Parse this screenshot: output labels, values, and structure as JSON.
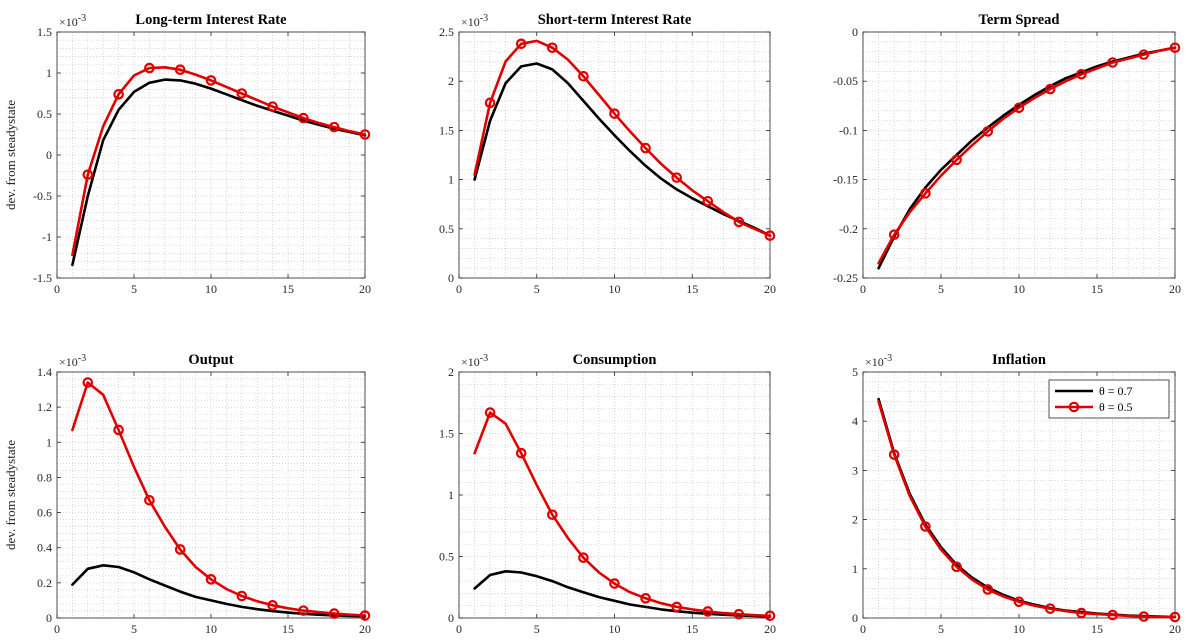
{
  "figure": {
    "colors": {
      "black_series": "#000000",
      "red_series": "#e00000",
      "grid": "#c8c8c8",
      "axis": "#262626"
    }
  },
  "chart_data": [
    {
      "type": "line",
      "title": "Long-term Interest Rate",
      "ylabel": "dev. from steadystate",
      "exponent_label": "×10",
      "exponent_power": "-3",
      "xlim": [
        0,
        20
      ],
      "ylim": [
        -1.5,
        1.5
      ],
      "xticks": [
        0,
        5,
        10,
        15,
        20
      ],
      "yticks": [
        -1.5,
        -1,
        -0.5,
        0,
        0.5,
        1,
        1.5
      ],
      "ytick_labels": [
        "-1.5",
        "-1",
        "-0.5",
        "0",
        "0.5",
        "1",
        "1.5"
      ],
      "grid": true,
      "x": [
        1,
        2,
        3,
        4,
        5,
        6,
        7,
        8,
        9,
        10,
        11,
        12,
        13,
        14,
        15,
        16,
        17,
        18,
        19,
        20
      ],
      "series": [
        {
          "color": "#000000",
          "marker": "none",
          "values": [
            -1.34,
            -0.5,
            0.18,
            0.55,
            0.77,
            0.88,
            0.92,
            0.91,
            0.87,
            0.81,
            0.74,
            0.67,
            0.6,
            0.54,
            0.48,
            0.42,
            0.37,
            0.32,
            0.28,
            0.24
          ]
        },
        {
          "color": "#e00000",
          "marker": "circle",
          "values": [
            -1.22,
            -0.24,
            0.35,
            0.74,
            0.97,
            1.06,
            1.07,
            1.04,
            0.98,
            0.91,
            0.83,
            0.75,
            0.67,
            0.59,
            0.52,
            0.45,
            0.39,
            0.34,
            0.29,
            0.25
          ]
        }
      ]
    },
    {
      "type": "line",
      "title": "Short-term Interest Rate",
      "ylabel": "",
      "exponent_label": "×10",
      "exponent_power": "-3",
      "xlim": [
        0,
        20
      ],
      "ylim": [
        0,
        2.5
      ],
      "xticks": [
        0,
        5,
        10,
        15,
        20
      ],
      "yticks": [
        0,
        0.5,
        1,
        1.5,
        2,
        2.5
      ],
      "ytick_labels": [
        "0",
        "0.5",
        "1",
        "1.5",
        "2",
        "2.5"
      ],
      "grid": true,
      "x": [
        1,
        2,
        3,
        4,
        5,
        6,
        7,
        8,
        9,
        10,
        11,
        12,
        13,
        14,
        15,
        16,
        17,
        18,
        19,
        20
      ],
      "series": [
        {
          "color": "#000000",
          "marker": "none",
          "values": [
            1.0,
            1.6,
            1.98,
            2.15,
            2.18,
            2.12,
            1.98,
            1.8,
            1.62,
            1.45,
            1.29,
            1.14,
            1.01,
            0.9,
            0.81,
            0.73,
            0.65,
            0.58,
            0.51,
            0.43
          ]
        },
        {
          "color": "#e00000",
          "marker": "circle",
          "values": [
            1.05,
            1.78,
            2.2,
            2.38,
            2.41,
            2.34,
            2.22,
            2.05,
            1.86,
            1.67,
            1.49,
            1.32,
            1.16,
            1.02,
            0.89,
            0.78,
            0.67,
            0.57,
            0.5,
            0.43
          ]
        }
      ]
    },
    {
      "type": "line",
      "title": "Term Spread",
      "ylabel": "",
      "exponent_label": "",
      "exponent_power": "",
      "xlim": [
        0,
        20
      ],
      "ylim": [
        -0.25,
        0
      ],
      "xticks": [
        0,
        5,
        10,
        15,
        20
      ],
      "yticks": [
        -0.25,
        -0.2,
        -0.15,
        -0.1,
        -0.05,
        0
      ],
      "ytick_labels": [
        "-0.25",
        "-0.2",
        "-0.15",
        "-0.1",
        "-0.05",
        "0"
      ],
      "grid": true,
      "x": [
        1,
        2,
        3,
        4,
        5,
        6,
        7,
        8,
        9,
        10,
        11,
        12,
        13,
        14,
        15,
        16,
        17,
        18,
        19,
        20
      ],
      "series": [
        {
          "color": "#000000",
          "marker": "none",
          "values": [
            -0.24,
            -0.208,
            -0.18,
            -0.158,
            -0.14,
            -0.125,
            -0.11,
            -0.097,
            -0.085,
            -0.074,
            -0.064,
            -0.055,
            -0.047,
            -0.041,
            -0.035,
            -0.03,
            -0.026,
            -0.022,
            -0.019,
            -0.016
          ]
        },
        {
          "color": "#e00000",
          "marker": "circle",
          "values": [
            -0.235,
            -0.206,
            -0.183,
            -0.164,
            -0.146,
            -0.13,
            -0.115,
            -0.101,
            -0.088,
            -0.077,
            -0.067,
            -0.058,
            -0.05,
            -0.043,
            -0.037,
            -0.031,
            -0.027,
            -0.023,
            -0.019,
            -0.016
          ]
        }
      ]
    },
    {
      "type": "line",
      "title": "Output",
      "ylabel": "dev. from steadystate",
      "exponent_label": "×10",
      "exponent_power": "-3",
      "xlim": [
        0,
        20
      ],
      "ylim": [
        0,
        1.4
      ],
      "xticks": [
        0,
        5,
        10,
        15,
        20
      ],
      "yticks": [
        0,
        0.2,
        0.4,
        0.6,
        0.8,
        1,
        1.2,
        1.4
      ],
      "ytick_labels": [
        "0",
        "0.2",
        "0.4",
        "0.6",
        "0.8",
        "1",
        "1.2",
        "1.4"
      ],
      "grid": true,
      "x": [
        1,
        2,
        3,
        4,
        5,
        6,
        7,
        8,
        9,
        10,
        11,
        12,
        13,
        14,
        15,
        16,
        17,
        18,
        19,
        20
      ],
      "series": [
        {
          "color": "#000000",
          "marker": "none",
          "values": [
            0.19,
            0.28,
            0.3,
            0.29,
            0.26,
            0.22,
            0.185,
            0.15,
            0.12,
            0.1,
            0.08,
            0.063,
            0.05,
            0.039,
            0.031,
            0.024,
            0.019,
            0.015,
            0.012,
            0.01
          ]
        },
        {
          "color": "#e00000",
          "marker": "circle",
          "values": [
            1.07,
            1.34,
            1.27,
            1.07,
            0.86,
            0.67,
            0.52,
            0.39,
            0.29,
            0.22,
            0.165,
            0.125,
            0.095,
            0.072,
            0.055,
            0.042,
            0.033,
            0.025,
            0.019,
            0.014
          ]
        }
      ]
    },
    {
      "type": "line",
      "title": "Consumption",
      "ylabel": "",
      "exponent_label": "×10",
      "exponent_power": "-3",
      "xlim": [
        0,
        20
      ],
      "ylim": [
        0,
        2
      ],
      "xticks": [
        0,
        5,
        10,
        15,
        20
      ],
      "yticks": [
        0,
        0.5,
        1,
        1.5,
        2
      ],
      "ytick_labels": [
        "0",
        "0.5",
        "1",
        "1.5",
        "2"
      ],
      "grid": true,
      "x": [
        1,
        2,
        3,
        4,
        5,
        6,
        7,
        8,
        9,
        10,
        11,
        12,
        13,
        14,
        15,
        16,
        17,
        18,
        19,
        20
      ],
      "series": [
        {
          "color": "#000000",
          "marker": "none",
          "values": [
            0.24,
            0.35,
            0.38,
            0.37,
            0.34,
            0.3,
            0.25,
            0.21,
            0.17,
            0.14,
            0.11,
            0.09,
            0.07,
            0.055,
            0.043,
            0.034,
            0.027,
            0.021,
            0.017,
            0.013
          ]
        },
        {
          "color": "#e00000",
          "marker": "circle",
          "values": [
            1.34,
            1.67,
            1.58,
            1.34,
            1.08,
            0.84,
            0.65,
            0.49,
            0.37,
            0.28,
            0.21,
            0.16,
            0.12,
            0.09,
            0.07,
            0.053,
            0.04,
            0.031,
            0.023,
            0.018
          ]
        }
      ]
    },
    {
      "type": "line",
      "title": "Inflation",
      "ylabel": "",
      "exponent_label": "×10",
      "exponent_power": "-3",
      "xlim": [
        0,
        20
      ],
      "ylim": [
        0,
        5
      ],
      "xticks": [
        0,
        5,
        10,
        15,
        20
      ],
      "yticks": [
        0,
        1,
        2,
        3,
        4,
        5
      ],
      "ytick_labels": [
        "0",
        "1",
        "2",
        "3",
        "4",
        "5"
      ],
      "grid": true,
      "legend": {
        "placement": "top-right",
        "entries": [
          {
            "label": "θ = 0.7",
            "color": "#000000",
            "marker": "none"
          },
          {
            "label": "θ = 0.5",
            "color": "#e00000",
            "marker": "circle"
          }
        ]
      },
      "x": [
        1,
        2,
        3,
        4,
        5,
        6,
        7,
        8,
        9,
        10,
        11,
        12,
        13,
        14,
        15,
        16,
        17,
        18,
        19,
        20
      ],
      "series": [
        {
          "name": "θ = 0.7",
          "color": "#000000",
          "marker": "none",
          "values": [
            4.45,
            3.35,
            2.52,
            1.9,
            1.44,
            1.08,
            0.82,
            0.62,
            0.47,
            0.35,
            0.27,
            0.2,
            0.15,
            0.12,
            0.09,
            0.07,
            0.05,
            0.04,
            0.03,
            0.02
          ]
        },
        {
          "name": "θ = 0.5",
          "color": "#e00000",
          "marker": "circle",
          "values": [
            4.4,
            3.32,
            2.48,
            1.86,
            1.39,
            1.04,
            0.78,
            0.58,
            0.44,
            0.33,
            0.25,
            0.19,
            0.14,
            0.1,
            0.08,
            0.06,
            0.04,
            0.03,
            0.02,
            0.02
          ]
        }
      ]
    }
  ]
}
